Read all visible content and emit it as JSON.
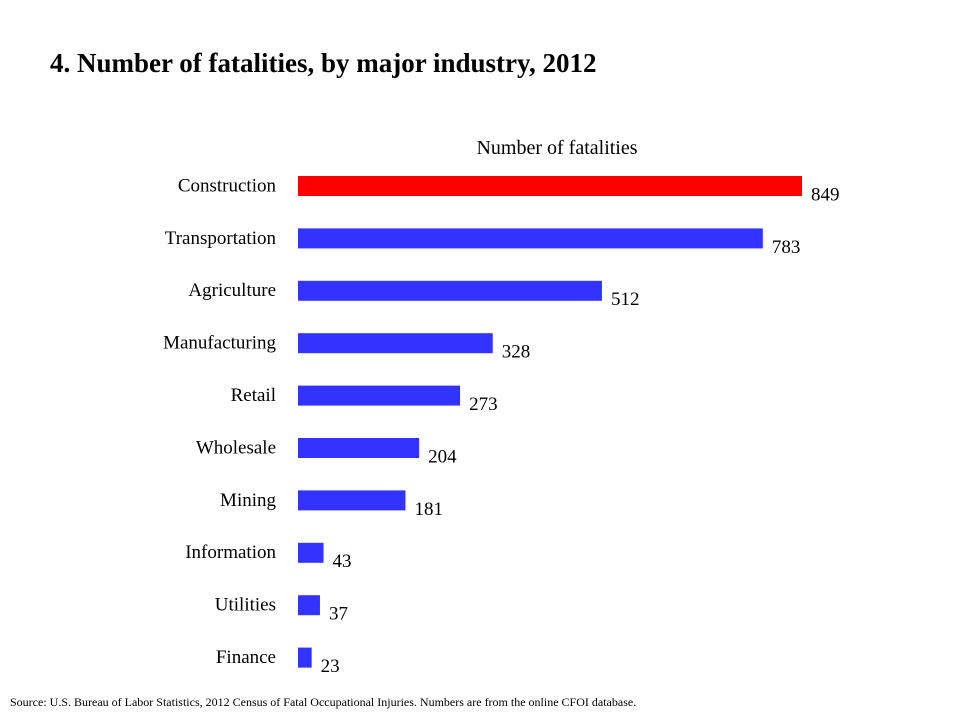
{
  "title": "4. Number of fatalities, by major industry, 2012",
  "source": "Source: U.S. Bureau of Labor Statistics, 2012 Census of Fatal Occupational Injuries. Numbers are from the online CFOI database.",
  "colors": {
    "highlight": "#ff0000",
    "bar": "#3333ff"
  },
  "chart_data": {
    "type": "bar",
    "orientation": "horizontal",
    "xlabel": "Number of fatalities",
    "ylabel": "",
    "categories": [
      "Construction",
      "Transportation",
      "Agriculture",
      "Manufacturing",
      "Retail",
      "Wholesale",
      "Mining",
      "Information",
      "Utilities",
      "Finance"
    ],
    "values": [
      849,
      783,
      512,
      328,
      273,
      204,
      181,
      43,
      37,
      23
    ],
    "highlighted_category": "Construction",
    "xlim": [
      0,
      849
    ],
    "grid": false,
    "legend": "none",
    "data_labels": true
  }
}
